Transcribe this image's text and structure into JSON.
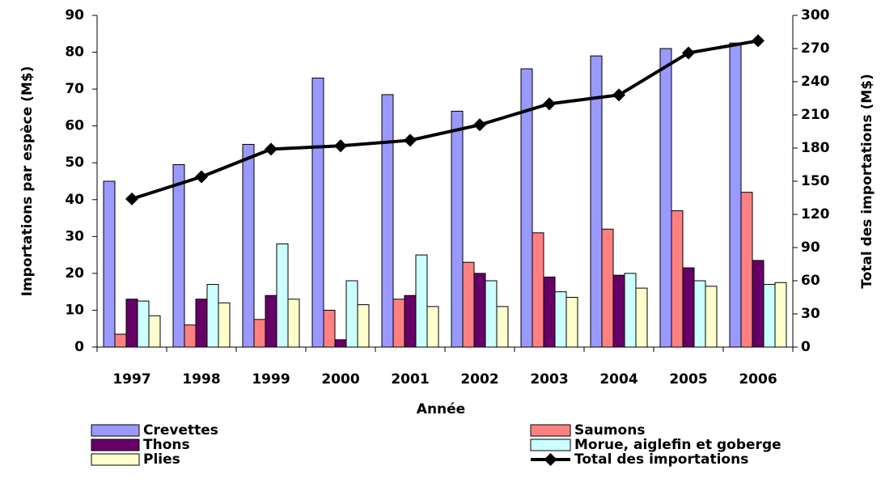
{
  "chart_data": {
    "type": "bar",
    "xlabel": "Année",
    "ylabel": "Importations par espèce (M$)",
    "y2label": "Total des importations (M$)",
    "categories": [
      "1997",
      "1998",
      "1999",
      "2000",
      "2001",
      "2002",
      "2003",
      "2004",
      "2005",
      "2006"
    ],
    "series": [
      {
        "name": "Crevettes",
        "color": "#9999ff",
        "values": [
          45,
          49.5,
          55,
          73,
          68.5,
          64,
          75.5,
          79,
          81,
          82.5
        ]
      },
      {
        "name": "Saumons",
        "color": "#ff8080",
        "values": [
          3.5,
          6,
          7.5,
          10,
          13,
          23,
          31,
          32,
          37,
          42
        ]
      },
      {
        "name": "Thons",
        "color": "#660066",
        "values": [
          13,
          13,
          14,
          2,
          14,
          20,
          19,
          19.5,
          21.5,
          23.5
        ]
      },
      {
        "name": "Morue, aiglefin et goberge",
        "color": "#ccffff",
        "values": [
          12.5,
          17,
          28,
          18,
          25,
          18,
          15,
          20,
          18,
          17
        ]
      },
      {
        "name": "Plies",
        "color": "#ffffcc",
        "values": [
          8.5,
          12,
          13,
          11.5,
          11,
          11,
          13.5,
          16,
          16.5,
          17.5
        ]
      },
      {
        "name": "Total des importations",
        "color": "#000000",
        "type": "line",
        "axis": "y2",
        "values": [
          134,
          154,
          179,
          182,
          187,
          201,
          220,
          228,
          266,
          277
        ]
      }
    ],
    "ylim": [
      0,
      90
    ],
    "yticks": [
      0,
      10,
      20,
      30,
      40,
      50,
      60,
      70,
      80,
      90
    ],
    "y2lim": [
      0,
      300
    ],
    "y2ticks": [
      0,
      30,
      60,
      90,
      120,
      150,
      180,
      210,
      240,
      270,
      300
    ]
  }
}
